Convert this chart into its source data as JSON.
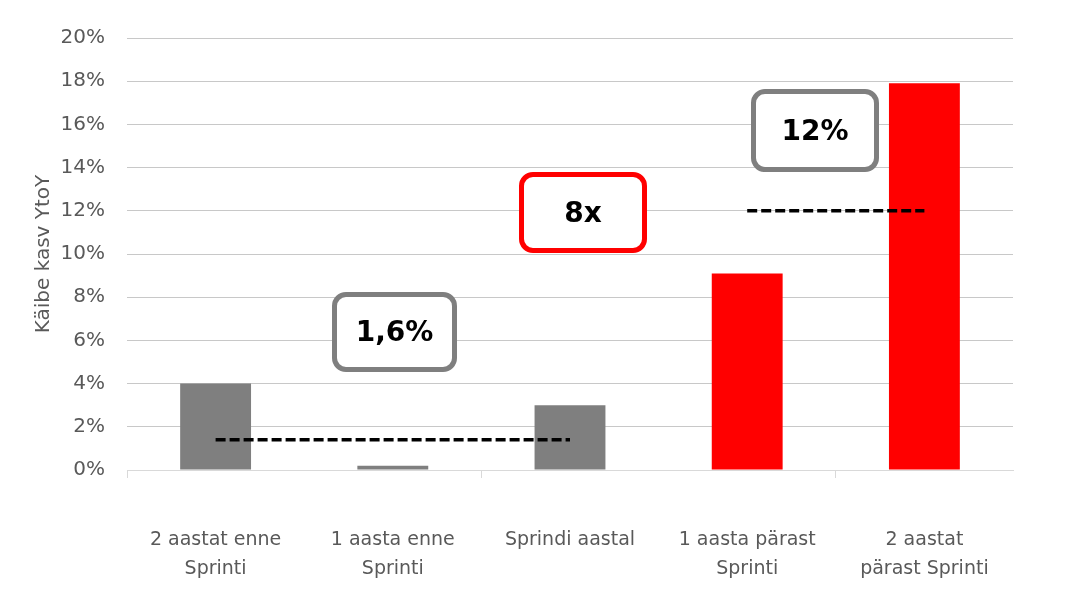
{
  "chart_data": {
    "type": "bar",
    "ylabel": "Käibe kasv YtoY",
    "categories": [
      "2 aastat enne Sprinti",
      "1 aasta enne Sprinti",
      "Sprindi aastal",
      "1 aasta pärast Sprinti",
      "2 aastat pärast Sprinti"
    ],
    "series": [
      {
        "colors": [
          "#7f7f7f",
          "#7f7f7f",
          "#7f7f7f",
          "#ff0000",
          "#ff0000"
        ],
        "values": [
          4.0,
          0.2,
          3.0,
          9.1,
          17.9
        ]
      },
      {
        "type": "line",
        "color": "#000000",
        "line_style": "dashed",
        "marker": "none",
        "values": [
          1.4,
          1.4,
          1.4,
          null,
          null
        ]
      },
      {
        "type": "line",
        "color": "#000000",
        "line_style": "dashed",
        "marker": "none",
        "values": [
          null,
          null,
          null,
          12,
          12
        ]
      }
    ],
    "ylim": [
      0,
      20
    ],
    "yticks": [
      {
        "value": 0,
        "label": "0%"
      },
      {
        "value": 2,
        "label": "2%"
      },
      {
        "value": 4,
        "label": "4%"
      },
      {
        "value": 6,
        "label": "6%"
      },
      {
        "value": 8,
        "label": "8%"
      },
      {
        "value": 10,
        "label": "10%"
      },
      {
        "value": 12,
        "label": "12%"
      },
      {
        "value": 14,
        "label": "14%"
      },
      {
        "value": 16,
        "label": "16%"
      },
      {
        "value": 18,
        "label": "18%"
      },
      {
        "value": 20,
        "label": "20%"
      }
    ],
    "grid": "y",
    "annotations": [
      "1,6%",
      "8x",
      "12%"
    ]
  }
}
